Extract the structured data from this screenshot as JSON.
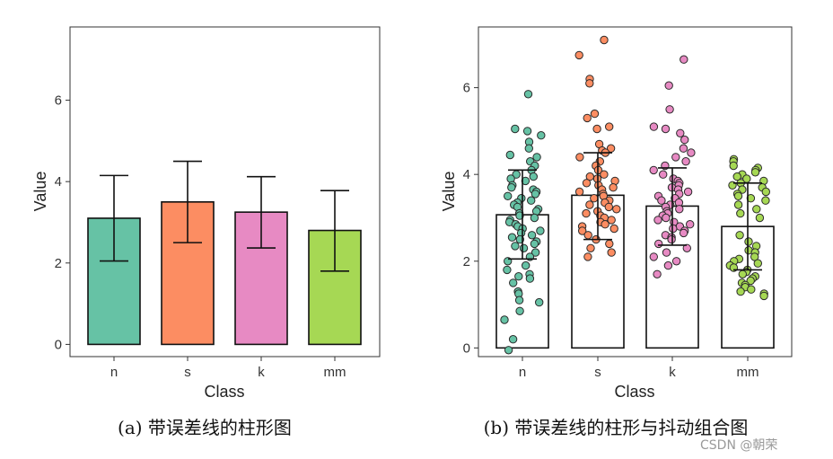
{
  "chart_data": [
    {
      "type": "bar",
      "title": "",
      "xlabel": "Class",
      "ylabel": "Value",
      "categories": [
        "n",
        "s",
        "k",
        "mm"
      ],
      "values": [
        3.1,
        3.5,
        3.25,
        2.8
      ],
      "error_low": [
        2.05,
        2.5,
        2.37,
        1.8
      ],
      "error_high": [
        4.15,
        4.5,
        4.12,
        3.78
      ],
      "colors": [
        "#66c2a5",
        "#fc8d62",
        "#e78ac3",
        "#a6d854"
      ],
      "ylim": [
        -0.3,
        7.8
      ],
      "yticks": [
        0,
        2,
        4,
        6
      ],
      "grid": false,
      "caption": "(a)  带误差线的柱形图"
    },
    {
      "type": "bar",
      "title": "",
      "xlabel": "Class",
      "ylabel": "Value",
      "categories": [
        "n",
        "s",
        "k",
        "mm"
      ],
      "values": [
        3.07,
        3.52,
        3.27,
        2.8
      ],
      "error_low": [
        2.05,
        2.5,
        2.37,
        1.8
      ],
      "error_high": [
        4.1,
        4.5,
        4.15,
        3.8
      ],
      "colors": [
        "#66c2a5",
        "#fc8d62",
        "#e78ac3",
        "#a6d854"
      ],
      "ylim": [
        -0.2,
        7.4
      ],
      "yticks": [
        0,
        2,
        4,
        6
      ],
      "grid": false,
      "points": {
        "n": [
          5.85,
          5.05,
          5.0,
          4.9,
          4.75,
          4.6,
          4.45,
          4.4,
          4.3,
          4.2,
          4.1,
          4.0,
          3.95,
          3.9,
          3.85,
          3.75,
          3.7,
          3.65,
          3.6,
          3.55,
          3.5,
          3.45,
          3.4,
          3.35,
          3.3,
          3.25,
          3.2,
          3.15,
          3.1,
          3.05,
          3.0,
          2.95,
          2.9,
          2.85,
          2.8,
          2.75,
          2.7,
          2.65,
          2.6,
          2.55,
          2.5,
          2.45,
          2.4,
          2.35,
          2.3,
          2.2,
          2.1,
          2.0,
          1.9,
          1.8,
          1.7,
          1.65,
          1.6,
          1.5,
          1.3,
          1.25,
          1.1,
          1.05,
          0.85,
          0.65,
          0.2,
          -0.05
        ],
        "s": [
          7.1,
          6.75,
          6.2,
          6.1,
          5.4,
          5.3,
          5.1,
          5.05,
          4.7,
          4.6,
          4.55,
          4.5,
          4.4,
          4.3,
          4.2,
          4.1,
          4.0,
          3.95,
          3.9,
          3.85,
          3.8,
          3.75,
          3.7,
          3.65,
          3.6,
          3.55,
          3.5,
          3.45,
          3.4,
          3.35,
          3.3,
          3.25,
          3.2,
          3.15,
          3.1,
          3.05,
          3.0,
          2.95,
          2.9,
          2.85,
          2.8,
          2.75,
          2.7,
          2.6,
          2.5,
          2.4,
          2.3,
          2.2,
          2.1
        ],
        "k": [
          6.65,
          6.05,
          5.5,
          5.1,
          5.05,
          4.95,
          4.8,
          4.6,
          4.5,
          4.4,
          4.3,
          4.2,
          4.1,
          4.0,
          3.9,
          3.85,
          3.8,
          3.75,
          3.7,
          3.65,
          3.6,
          3.55,
          3.5,
          3.45,
          3.4,
          3.35,
          3.3,
          3.25,
          3.2,
          3.15,
          3.1,
          3.05,
          3.0,
          2.95,
          2.9,
          2.85,
          2.8,
          2.75,
          2.7,
          2.65,
          2.6,
          2.55,
          2.5,
          2.4,
          2.3,
          2.2,
          2.1,
          2.0,
          1.9,
          1.7
        ],
        "mm": [
          4.35,
          4.3,
          4.2,
          4.15,
          4.1,
          4.05,
          4.0,
          3.95,
          3.9,
          3.85,
          3.8,
          3.75,
          3.7,
          3.65,
          3.6,
          3.55,
          3.5,
          3.45,
          3.4,
          3.3,
          3.2,
          3.1,
          3.0,
          2.6,
          2.45,
          2.35,
          2.25,
          2.2,
          2.1,
          2.05,
          2.0,
          1.95,
          1.9,
          1.85,
          1.8,
          1.75,
          1.7,
          1.65,
          1.6,
          1.55,
          1.5,
          1.45,
          1.4,
          1.35,
          1.3,
          1.25,
          1.2
        ]
      },
      "caption": "(b)  带误差线的柱形与抖动组合图"
    }
  ],
  "watermark": "CSDN @朝荣"
}
